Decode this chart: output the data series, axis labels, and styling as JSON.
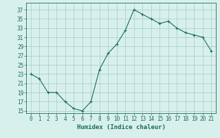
{
  "x": [
    0,
    1,
    2,
    3,
    4,
    5,
    6,
    7,
    8,
    9,
    10,
    11,
    12,
    13,
    14,
    15,
    16,
    17,
    18,
    19,
    20,
    21
  ],
  "y": [
    23,
    22,
    19,
    19,
    17,
    15.5,
    15,
    17,
    24,
    27.5,
    29.5,
    32.5,
    37,
    36,
    35,
    34,
    34.5,
    33,
    32,
    31.5,
    31,
    28
  ],
  "line_color": "#1a6b5a",
  "marker": "+",
  "marker_size": 3,
  "bg_color": "#d8f0ec",
  "grid_color": "#a0ccc8",
  "tick_color": "#1a6b5a",
  "label_color": "#1a6b5a",
  "xlabel": "Humidex (Indice chaleur)",
  "yticks": [
    15,
    17,
    19,
    21,
    23,
    25,
    27,
    29,
    31,
    33,
    35,
    37
  ],
  "xticks": [
    0,
    1,
    2,
    3,
    4,
    5,
    6,
    7,
    8,
    9,
    10,
    11,
    12,
    13,
    14,
    15,
    16,
    17,
    18,
    19,
    20,
    21
  ],
  "ylim": [
    14.5,
    38.5
  ],
  "xlim": [
    -0.5,
    21.5
  ]
}
